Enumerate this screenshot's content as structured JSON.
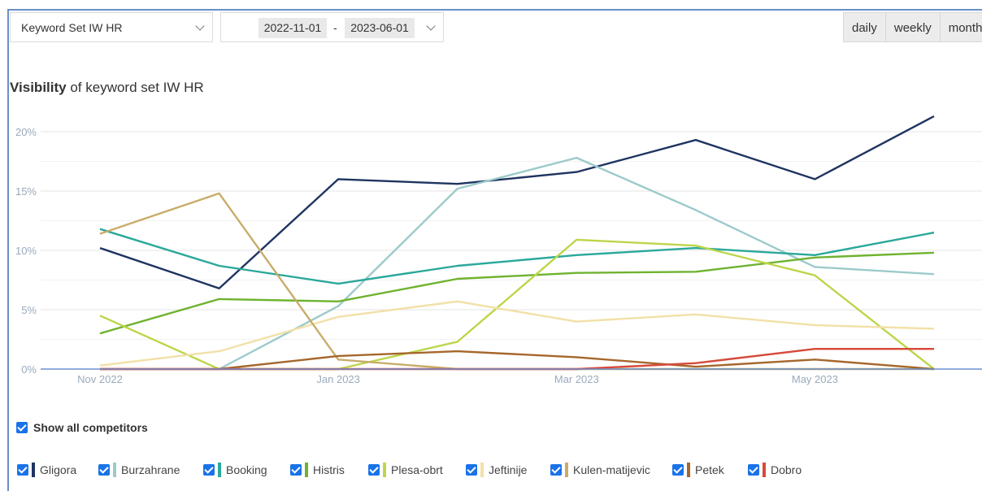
{
  "controls": {
    "keyword_set": "Keyword Set IW HR",
    "date_from": "2022-11-01",
    "date_sep": "-",
    "date_to": "2023-06-01",
    "periods": [
      "daily",
      "weekly",
      "monthly"
    ]
  },
  "heading": {
    "bold": "Visibility",
    "rest": " of keyword set IW HR"
  },
  "show_all_label": "Show all competitors",
  "chart_data": {
    "type": "line",
    "title": "Visibility of keyword set IW HR",
    "x": [
      "2022-11",
      "2022-12",
      "2023-01",
      "2023-02",
      "2023-03",
      "2023-04",
      "2023-05",
      "2023-06"
    ],
    "x_tick_labels": [
      "Nov 2022",
      "Jan 2023",
      "Mar 2023",
      "May 2023"
    ],
    "y_ticks": [
      "0%",
      "5%",
      "10%",
      "15%",
      "20%"
    ],
    "ylim": [
      0,
      20
    ],
    "grid": true,
    "legend_position": "bottom",
    "series": [
      {
        "name": "Gligora",
        "color": "#1f3461",
        "values": [
          10.2,
          6.8,
          16.0,
          15.6,
          16.6,
          19.3,
          16.0,
          21.3
        ]
      },
      {
        "name": "Burzahrane",
        "color": "#9ccaca",
        "values": [
          null,
          0,
          5.3,
          15.2,
          17.8,
          13.4,
          8.6,
          8.0
        ]
      },
      {
        "name": "Booking",
        "color": "#2aa89b",
        "values": [
          11.8,
          8.7,
          7.2,
          8.7,
          9.6,
          10.2,
          9.6,
          11.5
        ]
      },
      {
        "name": "Histris",
        "color": "#6fb22f",
        "values": [
          3.0,
          5.9,
          5.7,
          7.6,
          8.1,
          8.2,
          9.4,
          9.8
        ]
      },
      {
        "name": "Plesa-obrt",
        "color": "#bcd64a",
        "values": [
          4.5,
          0,
          0,
          2.3,
          10.9,
          10.4,
          7.9,
          0
        ]
      },
      {
        "name": "Jeftinije",
        "color": "#f2e0a8",
        "values": [
          0.3,
          1.5,
          4.4,
          5.7,
          4.0,
          4.6,
          3.7,
          3.4
        ]
      },
      {
        "name": "Kulen-matijevic",
        "color": "#c8ac6a",
        "values": [
          11.4,
          14.8,
          0.8,
          0,
          0,
          0,
          0,
          0
        ]
      },
      {
        "name": "Petek",
        "color": "#a5672c",
        "values": [
          0,
          0,
          1.1,
          1.5,
          1.0,
          0.2,
          0.8,
          0
        ]
      },
      {
        "name": "Dobro",
        "color": "#d64a3a",
        "values": [
          0,
          0,
          0,
          0,
          0,
          0.5,
          1.7,
          1.7
        ]
      }
    ]
  }
}
